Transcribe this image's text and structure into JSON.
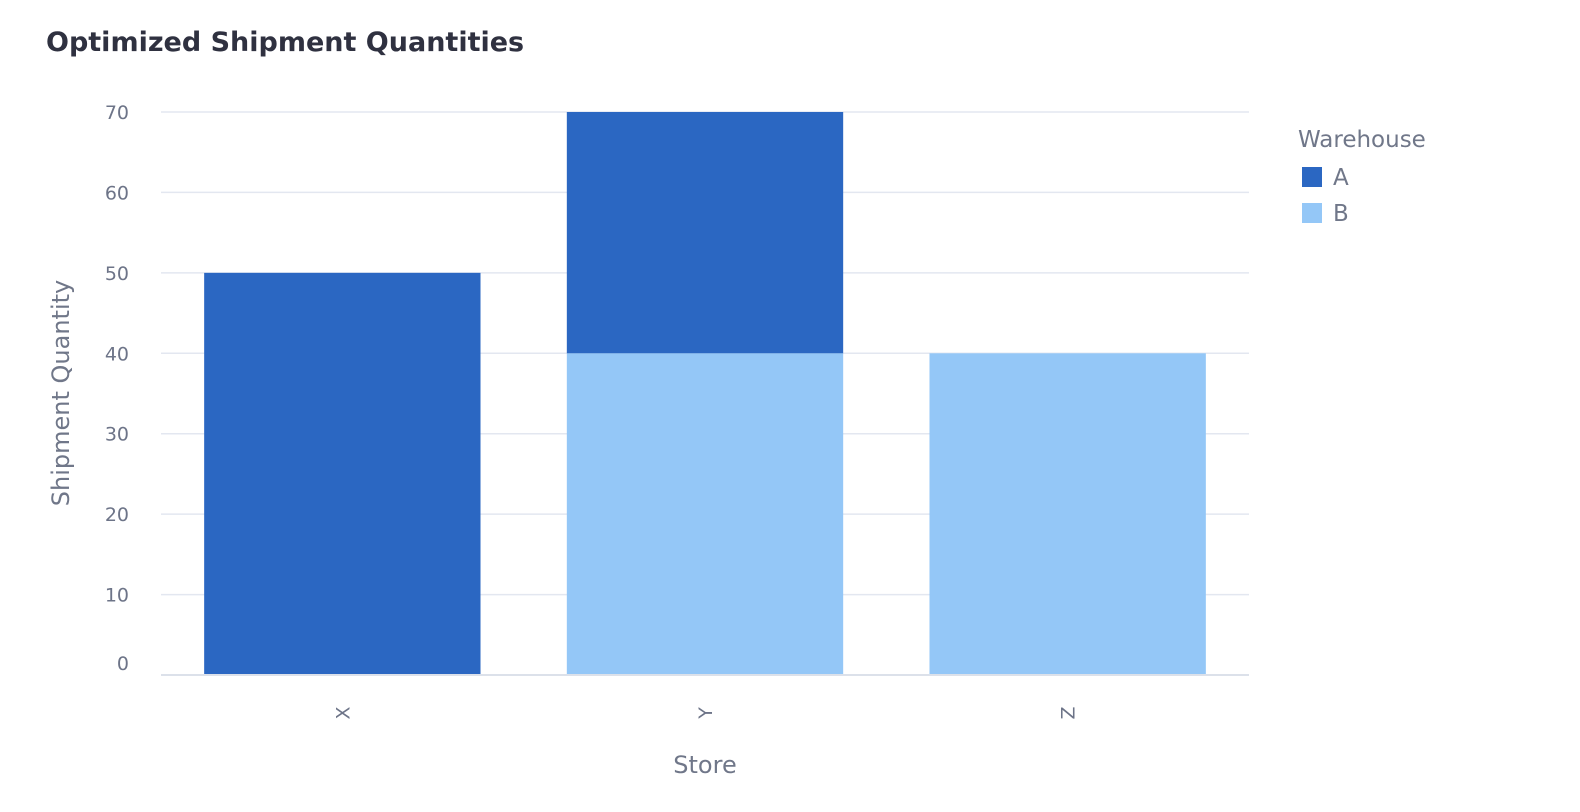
{
  "chart_data": {
    "type": "bar",
    "stacked": true,
    "title": "Optimized Shipment Quantities",
    "xlabel": "Store",
    "ylabel": "Shipment Quantity",
    "categories": [
      "X",
      "Y",
      "Z"
    ],
    "series": [
      {
        "name": "A",
        "color": "#2b67c2",
        "values": [
          50,
          30,
          0
        ]
      },
      {
        "name": "B",
        "color": "#94c7f7",
        "values": [
          0,
          40,
          40
        ]
      }
    ],
    "ylim": [
      0,
      70
    ],
    "yticks": [
      0,
      10,
      20,
      30,
      40,
      50,
      60,
      70
    ],
    "grid": true,
    "legend": {
      "title": "Warehouse",
      "placement": "right"
    }
  }
}
